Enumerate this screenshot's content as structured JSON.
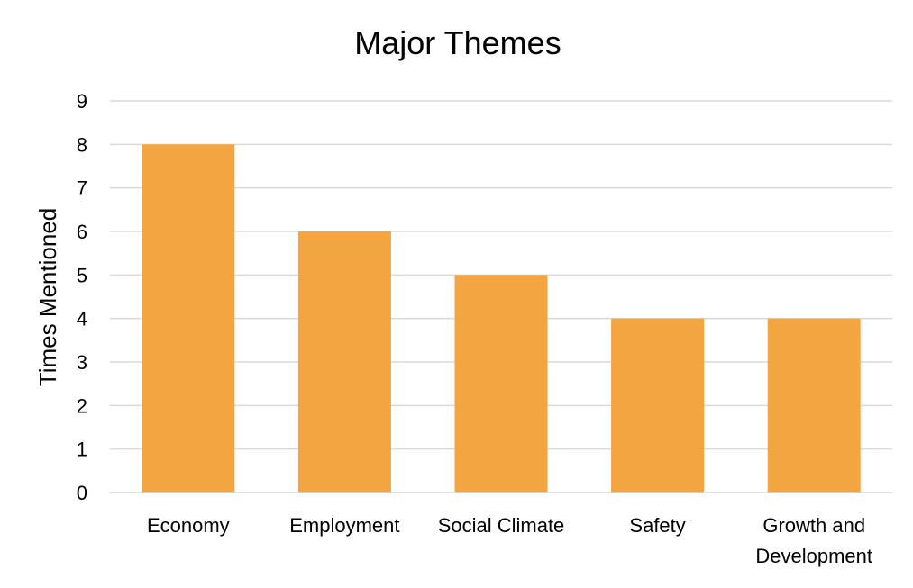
{
  "chart_data": {
    "type": "bar",
    "title": "Major Themes",
    "xlabel": "",
    "ylabel": "Times Mentioned",
    "categories": [
      "Economy",
      "Employment",
      "Social Climate",
      "Safety",
      "Growth and Development"
    ],
    "values": [
      8,
      6,
      5,
      4,
      4
    ],
    "ylim": [
      0,
      9
    ],
    "yticks": [
      0,
      1,
      2,
      3,
      4,
      5,
      6,
      7,
      8,
      9
    ],
    "grid": true,
    "legend": "none",
    "bar_color": "#F2A541",
    "grid_color": "#D9D9D9"
  }
}
